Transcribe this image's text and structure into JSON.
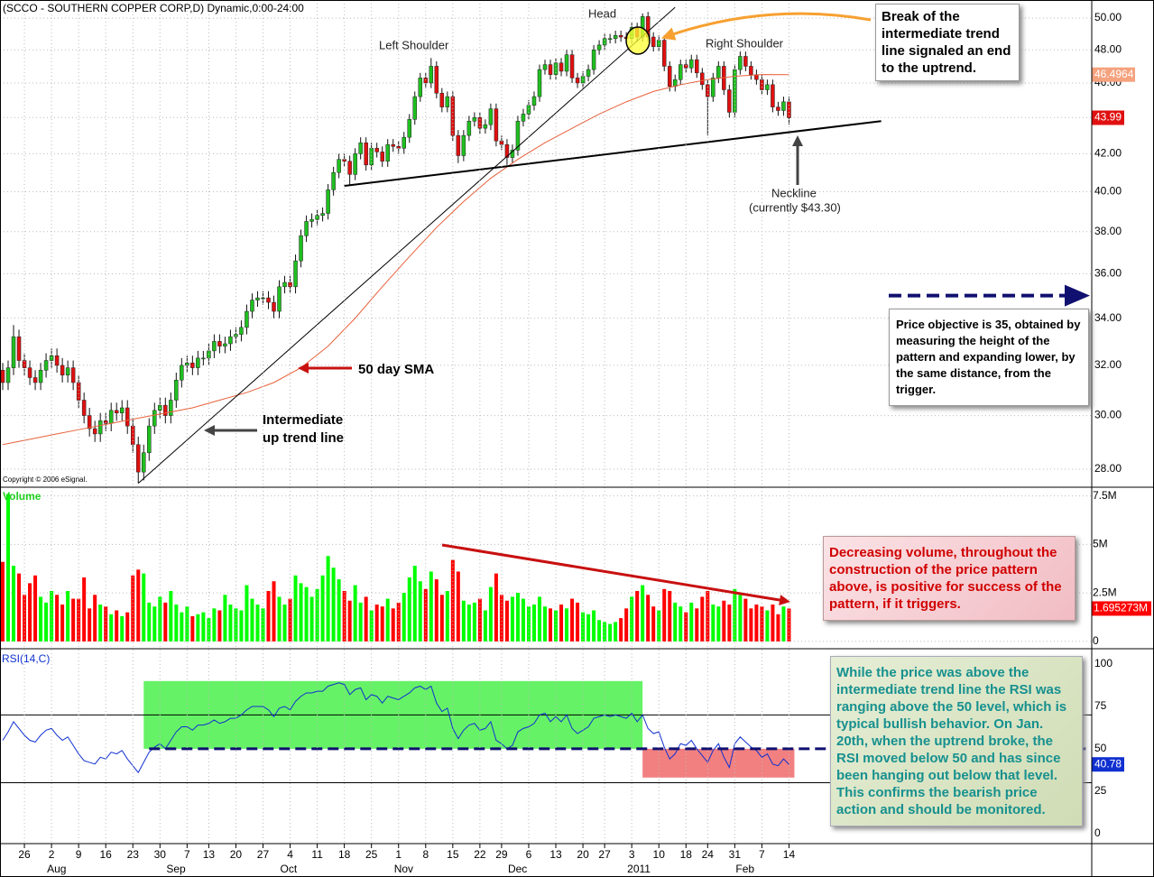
{
  "chart_data": [
    {
      "type": "candlestick",
      "title": "(SCCO - SOUTHERN COPPER CORP,D) Dynamic,0:00-24:00",
      "open": [
        31.8,
        31.3,
        31.9,
        33.2,
        32.2,
        31.9,
        31.5,
        31.3,
        31.8,
        32.2,
        32.4,
        32.0,
        31.6,
        31.9,
        31.3,
        30.6,
        30.0,
        29.5,
        29.3,
        29.8,
        29.7,
        30.2,
        30.1,
        30.3,
        29.6,
        28.9,
        27.9,
        28.6,
        29.6,
        30.2,
        30.4,
        30.0,
        30.6,
        31.4,
        32.0,
        32.1,
        31.9,
        32.3,
        32.3,
        32.6,
        33.0,
        32.8,
        32.9,
        33.2,
        33.3,
        33.6,
        34.3,
        34.8,
        34.9,
        34.9,
        34.7,
        34.3,
        35.4,
        35.6,
        35.4,
        36.6,
        37.8,
        38.5,
        38.6,
        38.8,
        38.9,
        40.1,
        41.0,
        41.7,
        41.6,
        40.9,
        42.0,
        42.6,
        41.4,
        42.3,
        42.1,
        41.6,
        42.5,
        42.4,
        42.3,
        42.9,
        43.9,
        45.2,
        46.3,
        46.0,
        47.0,
        45.4,
        44.6,
        45.2,
        43.0,
        41.9,
        43.0,
        43.8,
        44.0,
        43.4,
        43.6,
        44.5,
        42.7,
        42.5,
        41.8,
        42.2,
        43.8,
        44.2,
        44.7,
        45.2,
        46.8,
        47.1,
        46.5,
        47.2,
        46.7,
        47.7,
        46.3,
        46.0,
        46.4,
        46.8,
        48.0,
        48.3,
        48.7,
        48.7,
        48.9,
        48.8,
        48.7,
        49.4,
        48.8,
        50.1,
        48.8,
        48.2,
        48.6,
        47.0,
        45.8,
        46.2,
        47.1,
        46.9,
        47.4,
        46.6,
        45.9,
        45.2,
        46.3,
        47.0,
        45.6,
        44.3,
        46.8,
        47.6,
        47.0,
        46.5,
        46.2,
        45.6,
        45.9,
        44.6,
        44.4,
        44.9
      ],
      "high": [
        32.1,
        32.2,
        33.7,
        33.5,
        32.5,
        32.2,
        31.8,
        32.1,
        32.5,
        32.7,
        32.7,
        32.3,
        32.2,
        32.2,
        31.6,
        30.9,
        30.3,
        29.8,
        30.1,
        30.1,
        30.5,
        30.5,
        30.6,
        30.6,
        29.9,
        29.2,
        28.9,
        29.9,
        30.5,
        30.7,
        30.7,
        30.9,
        31.7,
        32.3,
        32.4,
        32.4,
        32.6,
        32.6,
        32.9,
        33.3,
        33.3,
        33.2,
        33.5,
        33.6,
        33.9,
        34.6,
        35.1,
        35.2,
        35.2,
        35.2,
        35.0,
        35.7,
        35.9,
        35.9,
        36.9,
        38.1,
        38.8,
        38.9,
        39.1,
        39.2,
        40.4,
        41.3,
        42.0,
        42.0,
        41.9,
        42.3,
        42.9,
        42.9,
        42.6,
        42.6,
        42.4,
        42.8,
        42.8,
        42.7,
        43.2,
        44.2,
        45.5,
        46.6,
        46.6,
        47.5,
        47.3,
        45.7,
        45.5,
        45.5,
        43.3,
        43.3,
        44.1,
        44.3,
        44.3,
        43.9,
        44.8,
        44.8,
        43.0,
        42.8,
        42.5,
        44.1,
        44.5,
        45.0,
        45.5,
        47.1,
        47.4,
        47.4,
        47.5,
        47.5,
        48.0,
        48.0,
        46.6,
        46.7,
        47.1,
        48.3,
        48.6,
        49.0,
        49.0,
        49.2,
        49.2,
        49.1,
        49.7,
        49.7,
        50.3,
        50.4,
        49.1,
        48.9,
        48.9,
        47.3,
        46.5,
        47.4,
        47.4,
        47.7,
        47.7,
        46.9,
        46.2,
        46.6,
        47.3,
        47.3,
        45.9,
        47.1,
        47.9,
        47.9,
        47.3,
        46.8,
        46.5,
        46.2,
        46.2,
        44.9,
        45.2,
        45.2
      ],
      "low": [
        31.0,
        31.0,
        31.6,
        31.9,
        31.6,
        31.2,
        31.0,
        31.0,
        31.5,
        31.9,
        31.7,
        31.3,
        31.3,
        31.0,
        30.3,
        29.7,
        29.2,
        29.0,
        29.0,
        29.4,
        29.4,
        29.8,
        29.8,
        29.3,
        28.6,
        27.5,
        27.6,
        28.3,
        29.3,
        29.9,
        29.7,
        29.7,
        30.3,
        31.1,
        31.7,
        31.6,
        31.6,
        32.0,
        32.0,
        32.3,
        32.5,
        32.5,
        32.6,
        32.9,
        33.0,
        33.3,
        34.0,
        34.5,
        34.6,
        34.4,
        34.0,
        34.0,
        35.1,
        35.1,
        35.1,
        36.3,
        37.5,
        38.2,
        38.3,
        38.5,
        38.6,
        39.8,
        40.7,
        41.3,
        40.3,
        40.6,
        41.7,
        41.1,
        41.1,
        41.8,
        41.3,
        41.3,
        42.1,
        42.0,
        42.0,
        42.6,
        43.6,
        44.9,
        45.7,
        45.7,
        45.1,
        44.3,
        44.3,
        42.7,
        41.5,
        41.6,
        42.7,
        43.5,
        43.1,
        43.1,
        43.3,
        42.4,
        42.2,
        41.4,
        41.5,
        41.9,
        43.5,
        43.9,
        44.4,
        44.9,
        46.5,
        46.2,
        46.2,
        46.4,
        46.4,
        46.0,
        45.7,
        45.7,
        46.1,
        46.5,
        47.7,
        48.0,
        48.4,
        48.4,
        48.5,
        48.4,
        48.4,
        48.5,
        48.5,
        48.5,
        47.9,
        47.9,
        46.7,
        45.5,
        45.5,
        45.9,
        46.6,
        46.6,
        46.3,
        45.6,
        43.0,
        44.9,
        46.0,
        45.3,
        44.0,
        44.0,
        46.5,
        46.7,
        46.2,
        45.9,
        45.3,
        45.3,
        44.3,
        44.1,
        44.1,
        43.6
      ],
      "close": [
        31.3,
        31.9,
        33.2,
        32.2,
        31.9,
        31.5,
        31.3,
        31.8,
        32.2,
        32.4,
        32.0,
        31.6,
        31.9,
        31.3,
        30.6,
        30.0,
        29.5,
        29.3,
        29.8,
        29.7,
        30.2,
        30.1,
        30.3,
        29.6,
        28.9,
        27.9,
        28.6,
        29.6,
        30.2,
        30.4,
        30.0,
        30.6,
        31.4,
        32.0,
        32.1,
        31.9,
        32.3,
        32.3,
        32.6,
        33.0,
        32.8,
        32.9,
        33.2,
        33.3,
        33.6,
        34.3,
        34.8,
        34.9,
        34.9,
        34.7,
        34.3,
        35.4,
        35.6,
        35.4,
        36.6,
        37.8,
        38.5,
        38.6,
        38.8,
        38.9,
        40.1,
        41.0,
        41.7,
        41.6,
        40.9,
        42.0,
        42.6,
        41.4,
        42.3,
        42.1,
        41.6,
        42.5,
        42.4,
        42.3,
        42.9,
        43.9,
        45.2,
        46.3,
        46.0,
        47.0,
        45.4,
        44.6,
        45.2,
        43.0,
        41.9,
        43.0,
        43.8,
        44.0,
        43.4,
        43.6,
        44.5,
        42.7,
        42.5,
        41.8,
        42.2,
        43.8,
        44.2,
        44.7,
        45.2,
        46.8,
        47.1,
        46.5,
        47.2,
        46.7,
        47.7,
        46.3,
        46.0,
        46.4,
        46.8,
        48.0,
        48.3,
        48.7,
        48.7,
        48.9,
        48.8,
        48.7,
        49.4,
        48.8,
        50.1,
        48.8,
        48.2,
        48.6,
        47.0,
        45.8,
        46.2,
        47.1,
        46.9,
        47.4,
        46.6,
        45.9,
        45.2,
        46.3,
        47.0,
        45.6,
        44.3,
        46.8,
        47.6,
        47.0,
        46.5,
        46.2,
        45.6,
        45.9,
        44.6,
        44.4,
        44.9,
        43.99
      ],
      "up_color": "#1fbf1f",
      "down_color": "#e01010",
      "sma": {
        "color": "#e8613c",
        "x": [
          0,
          5,
          10,
          15,
          20,
          25,
          30,
          35,
          40,
          45,
          50,
          55,
          60,
          65,
          70,
          75,
          80,
          85,
          90,
          95,
          100,
          105,
          110,
          115,
          120,
          125,
          130,
          135,
          140,
          145
        ],
        "values": [
          28.9,
          29.1,
          29.3,
          29.5,
          29.7,
          29.9,
          30.1,
          30.3,
          30.6,
          30.9,
          31.3,
          31.9,
          32.8,
          34.0,
          35.4,
          36.8,
          38.2,
          39.5,
          40.7,
          41.7,
          42.6,
          43.4,
          44.2,
          44.9,
          45.5,
          45.9,
          46.2,
          46.4,
          46.5,
          46.4964
        ]
      },
      "trend_lines": [
        {
          "x": [
            25,
            124
          ],
          "values": [
            27.5,
            50.7
          ],
          "color": "#000000"
        },
        {
          "x": [
            63,
            162
          ],
          "values": [
            40.3,
            43.8
          ],
          "color": "#000000"
        }
      ],
      "objective": 35,
      "xlim": [
        -0.5,
        200
      ],
      "ylim": [
        27.36,
        51.0
      ],
      "log_scale": true,
      "yticks": [
        {
          "value": 28,
          "label": "28.00"
        },
        {
          "value": 30,
          "label": "30.00"
        },
        {
          "value": 32,
          "label": "32.00"
        },
        {
          "value": 34,
          "label": "34.00"
        },
        {
          "value": 36,
          "label": "36.00"
        },
        {
          "value": 38,
          "label": "38.00"
        },
        {
          "value": 40,
          "label": "40.00"
        },
        {
          "value": 42,
          "label": "42.00"
        },
        {
          "value": 44,
          "label": "44.00"
        },
        {
          "value": 46,
          "label": "46.00"
        },
        {
          "value": 48,
          "label": "48.00"
        },
        {
          "value": 50,
          "label": "50.00"
        }
      ],
      "grid": true,
      "annotations": {
        "head": "Head",
        "left_shoulder": "Left Shoulder",
        "right_shoulder": "Right Shoulder",
        "break": "Break of the intermediate trend line signaled an end to the uptrend.",
        "sma": "50 day SMA",
        "trend_1": "Intermediate",
        "trend_2": "up trend line",
        "neckline": "Neckline",
        "neckline_note": "(currently $43.30)",
        "objective": "Price objective is 35, obtained by measuring the height of the pattern and expanding lower, by the same distance, from the trigger.",
        "copyright": "Copyright © 2006 eSignal."
      }
    },
    {
      "type": "bar",
      "title": "Volume",
      "values": [
        4.1,
        7.6,
        3.9,
        3.5,
        2.4,
        3.0,
        3.4,
        2.3,
        2.0,
        2.6,
        2.4,
        1.9,
        2.6,
        2.2,
        2.2,
        3.3,
        1.7,
        2.4,
        1.9,
        1.8,
        1.4,
        1.6,
        1.3,
        1.5,
        3.4,
        3.7,
        3.5,
        2.0,
        1.8,
        2.3,
        2.0,
        2.6,
        1.9,
        1.5,
        1.8,
        1.3,
        1.4,
        1.5,
        1.2,
        1.7,
        1.6,
        2.4,
        1.9,
        1.7,
        1.6,
        2.9,
        2.2,
        1.9,
        1.7,
        2.6,
        3.1,
        2.3,
        1.9,
        2.2,
        3.4,
        3.0,
        2.8,
        2.3,
        2.7,
        3.4,
        4.4,
        3.8,
        3.2,
        2.6,
        2.1,
        2.9,
        2.0,
        2.3,
        1.6,
        1.9,
        1.8,
        2.2,
        1.7,
        2.0,
        2.5,
        3.3,
        3.9,
        3.1,
        2.7,
        3.6,
        3.2,
        2.4,
        2.6,
        4.2,
        3.6,
        2.1,
        1.9,
        2.0,
        2.2,
        1.6,
        2.8,
        3.5,
        2.4,
        2.1,
        2.3,
        2.5,
        2.2,
        1.8,
        1.9,
        2.3,
        1.8,
        1.7,
        1.6,
        1.9,
        1.7,
        2.2,
        2.0,
        1.5,
        1.4,
        1.6,
        1.1,
        1.0,
        0.9,
        1.0,
        1.2,
        1.7,
        2.3,
        2.6,
        2.9,
        2.4,
        1.8,
        1.6,
        2.7,
        2.6,
        2.0,
        1.8,
        1.5,
        2.0,
        1.7,
        2.3,
        2.6,
        1.9,
        1.8,
        2.1,
        1.9,
        2.7,
        2.4,
        2.2,
        1.7,
        1.9,
        1.8,
        1.6,
        1.9,
        1.4,
        1.8,
        1.695273
      ],
      "value_labels": {
        "145": "1.695273M"
      },
      "up_color": "#00ff00",
      "down_color": "#ff0000",
      "xlim": [
        -0.5,
        200
      ],
      "ylim": [
        -0.33,
        7.9
      ],
      "yticks": [
        0,
        {
          "value": 2.5,
          "label": "2.5M"
        },
        {
          "value": 5,
          "label": "5M"
        },
        {
          "value": 7.5,
          "label": "7.5M"
        }
      ],
      "grid": true,
      "annotations": {
        "note": "Decreasing volume, throughout the construction of the price pattern above, is positive for success of the pattern, if it triggers."
      }
    },
    {
      "type": "line",
      "title": "RSI(14,C)",
      "color": "#1030d0",
      "values": [
        55,
        60,
        66,
        62,
        58,
        55,
        54,
        58,
        61,
        62,
        58,
        55,
        57,
        52,
        47,
        43,
        42,
        41,
        45,
        44,
        48,
        47,
        49,
        44,
        40,
        36,
        42,
        48,
        51,
        53,
        50,
        55,
        60,
        63,
        63,
        61,
        64,
        64,
        65,
        67,
        65,
        66,
        68,
        68,
        70,
        73,
        75,
        75,
        75,
        73,
        69,
        74,
        75,
        73,
        78,
        81,
        83,
        83,
        84,
        84,
        87,
        88,
        89,
        88,
        82,
        85,
        86,
        79,
        82,
        81,
        77,
        81,
        80,
        79,
        81,
        83,
        86,
        87,
        85,
        87,
        77,
        72,
        74,
        62,
        56,
        61,
        64,
        65,
        61,
        62,
        66,
        55,
        53,
        50,
        52,
        60,
        62,
        63,
        65,
        70,
        71,
        66,
        69,
        66,
        70,
        62,
        59,
        61,
        63,
        68,
        69,
        70,
        69,
        70,
        69,
        68,
        71,
        66,
        70,
        62,
        59,
        60,
        51,
        44,
        47,
        53,
        52,
        55,
        50,
        46,
        42,
        49,
        53,
        45,
        39,
        53,
        57,
        54,
        51,
        49,
        45,
        47,
        41,
        40,
        44,
        40.78
      ],
      "levels": [
        30,
        70
      ],
      "dashed_level": {
        "value": 50,
        "x": [
          27,
          200
        ],
        "color": "#101070"
      },
      "highlights": [
        {
          "x": [
            26,
            118
          ],
          "range": [
            50,
            90
          ],
          "color": "#66f266"
        },
        {
          "x": [
            118,
            146
          ],
          "range": [
            33,
            50
          ],
          "color": "#f28080"
        }
      ],
      "xlim": [
        -0.5,
        200
      ],
      "ylim": [
        -6,
        107.5
      ],
      "yticks": [
        0,
        25,
        50,
        75,
        100
      ],
      "xticks": [
        {
          "value": 4,
          "label": "26"
        },
        {
          "value": 9,
          "label": "2"
        },
        {
          "value": 14,
          "label": "9"
        },
        {
          "value": 19,
          "label": "16"
        },
        {
          "value": 24,
          "label": "23"
        },
        {
          "value": 29,
          "label": "30"
        },
        {
          "value": 34,
          "label": "7"
        },
        {
          "value": 38,
          "label": "13"
        },
        {
          "value": 43,
          "label": "20"
        },
        {
          "value": 48,
          "label": "27"
        },
        {
          "value": 53,
          "label": "4"
        },
        {
          "value": 58,
          "label": "11"
        },
        {
          "value": 63,
          "label": "18"
        },
        {
          "value": 68,
          "label": "25"
        },
        {
          "value": 73,
          "label": "1"
        },
        {
          "value": 78,
          "label": "8"
        },
        {
          "value": 83,
          "label": "15"
        },
        {
          "value": 88,
          "label": "22"
        },
        {
          "value": 92,
          "label": "29"
        },
        {
          "value": 97,
          "label": "6"
        },
        {
          "value": 102,
          "label": "13"
        },
        {
          "value": 107,
          "label": "20"
        },
        {
          "value": 111,
          "label": "27"
        },
        {
          "value": 116,
          "label": "3"
        },
        {
          "value": 121,
          "label": "10"
        },
        {
          "value": 126,
          "label": "18"
        },
        {
          "value": 130,
          "label": "24"
        },
        {
          "value": 135,
          "label": "31"
        },
        {
          "value": 140,
          "label": "7"
        },
        {
          "value": 145,
          "label": "14"
        }
      ],
      "months": [
        {
          "value": 9,
          "label": "Aug"
        },
        {
          "value": 31,
          "label": "Sep"
        },
        {
          "value": 52,
          "label": "Oct"
        },
        {
          "value": 73,
          "label": "Nov"
        },
        {
          "value": 94,
          "label": "Dec"
        },
        {
          "value": 116,
          "label": "2011"
        },
        {
          "value": 136,
          "label": "Feb"
        }
      ],
      "annotations": {
        "note": "While the price was above the intermediate trend line the RSI was ranging above the 50 level, which is typical bullish behavior. On Jan. 20th, when the uptrend broke, the RSI moved below 50 and has since been hanging out below that level. This confirms the bearish price action and should be monitored."
      }
    }
  ]
}
